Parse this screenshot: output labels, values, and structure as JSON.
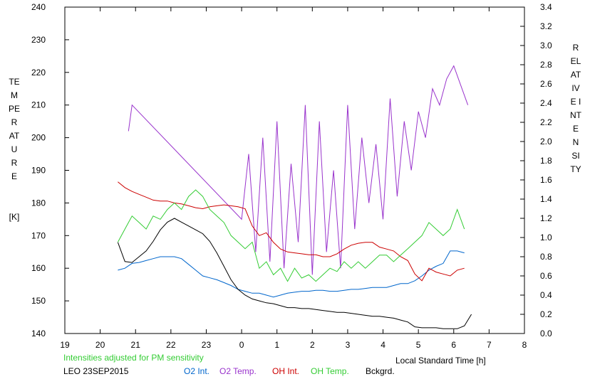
{
  "chart_data": {
    "type": "line",
    "title": "",
    "xlabel": "Local Standard Time [h]",
    "ylabel_left": "TEMPERATURE",
    "ylabel_left_unit": "[K]",
    "ylabel_right": "RELATIVE INTENSITY",
    "xlim": [
      19,
      32
    ],
    "ylim_left": [
      140,
      240
    ],
    "ylim_right": [
      0.0,
      3.4
    ],
    "x_ticks": [
      19,
      20,
      21,
      22,
      23,
      24,
      25,
      26,
      27,
      28,
      29,
      30,
      31,
      32
    ],
    "x_tick_labels": [
      "19",
      "20",
      "21",
      "22",
      "23",
      "0",
      "1",
      "2",
      "3",
      "4",
      "5",
      "6",
      "7",
      "8"
    ],
    "y_left_ticks": [
      140,
      150,
      160,
      170,
      180,
      190,
      200,
      210,
      220,
      230,
      240
    ],
    "y_right_ticks": [
      "0.0",
      "0.2",
      "0.4",
      "0.6",
      "0.8",
      "1.0",
      "1.2",
      "1.4",
      "1.6",
      "1.8",
      "2.0",
      "2.2",
      "2.4",
      "2.6",
      "2.8",
      "3.0",
      "3.2",
      "3.4"
    ],
    "grid": false,
    "note": "Intensities adjusted for PM sensitivity",
    "station_label": "LEO 23SEP2015",
    "legend_placement": "bottom",
    "series": [
      {
        "name": "O2 Int.",
        "color": "#0066cc",
        "axis": "right",
        "x": [
          20.5,
          20.7,
          20.9,
          21.1,
          21.3,
          21.5,
          21.7,
          21.9,
          22.1,
          22.3,
          22.5,
          22.7,
          22.9,
          23.1,
          23.3,
          23.5,
          23.7,
          23.9,
          24.1,
          24.3,
          24.5,
          24.7,
          24.9,
          25.1,
          25.3,
          25.5,
          25.7,
          25.9,
          26.1,
          26.3,
          26.5,
          26.7,
          26.9,
          27.1,
          27.3,
          27.5,
          27.7,
          27.9,
          28.1,
          28.3,
          28.5,
          28.7,
          28.9,
          29.1,
          29.3,
          29.5,
          29.7,
          29.9,
          30.1,
          30.3
        ],
        "values": [
          0.66,
          0.68,
          0.73,
          0.74,
          0.76,
          0.78,
          0.8,
          0.8,
          0.8,
          0.78,
          0.72,
          0.66,
          0.6,
          0.58,
          0.56,
          0.53,
          0.5,
          0.46,
          0.44,
          0.42,
          0.42,
          0.4,
          0.38,
          0.4,
          0.42,
          0.43,
          0.44,
          0.44,
          0.45,
          0.45,
          0.44,
          0.44,
          0.45,
          0.46,
          0.46,
          0.47,
          0.48,
          0.48,
          0.48,
          0.5,
          0.52,
          0.52,
          0.55,
          0.6,
          0.66,
          0.7,
          0.73,
          0.86,
          0.86,
          0.84
        ]
      },
      {
        "name": "O2 Temp.",
        "color": "#9933cc",
        "axis": "left",
        "x": [
          20.8,
          20.9,
          24.0,
          24.2,
          24.4,
          24.6,
          24.8,
          25.0,
          25.2,
          25.4,
          25.6,
          25.8,
          26.0,
          26.2,
          26.4,
          26.6,
          26.8,
          27.0,
          27.2,
          27.4,
          27.6,
          27.8,
          28.0,
          28.2,
          28.4,
          28.6,
          28.8,
          29.0,
          29.2,
          29.4,
          29.6,
          29.8,
          30.0,
          30.2,
          30.4
        ],
        "values": [
          202,
          210,
          175,
          195,
          165,
          200,
          162,
          205,
          160,
          192,
          168,
          210,
          158,
          205,
          165,
          190,
          160,
          210,
          172,
          200,
          180,
          198,
          175,
          212,
          182,
          205,
          190,
          208,
          200,
          215,
          210,
          218,
          222,
          216,
          210
        ]
      },
      {
        "name": "OH Int.",
        "color": "#cc0000",
        "axis": "right",
        "x": [
          20.5,
          20.7,
          20.9,
          21.1,
          21.3,
          21.5,
          21.7,
          21.9,
          22.1,
          22.3,
          22.5,
          22.7,
          22.9,
          23.1,
          23.3,
          23.5,
          23.7,
          23.9,
          24.1,
          24.3,
          24.5,
          24.7,
          24.9,
          25.1,
          25.3,
          25.5,
          25.7,
          25.9,
          26.1,
          26.3,
          26.5,
          26.7,
          26.9,
          27.1,
          27.3,
          27.5,
          27.7,
          27.9,
          28.1,
          28.3,
          28.5,
          28.7,
          28.9,
          29.1,
          29.3,
          29.5,
          29.7,
          29.9,
          30.1,
          30.3
        ],
        "values": [
          1.58,
          1.52,
          1.48,
          1.45,
          1.42,
          1.39,
          1.38,
          1.38,
          1.36,
          1.35,
          1.33,
          1.31,
          1.3,
          1.32,
          1.33,
          1.34,
          1.33,
          1.32,
          1.3,
          1.12,
          1.02,
          1.05,
          0.95,
          0.88,
          0.85,
          0.84,
          0.83,
          0.82,
          0.82,
          0.8,
          0.8,
          0.83,
          0.88,
          0.92,
          0.94,
          0.95,
          0.95,
          0.9,
          0.88,
          0.86,
          0.8,
          0.76,
          0.62,
          0.55,
          0.68,
          0.64,
          0.62,
          0.6,
          0.66,
          0.68
        ]
      },
      {
        "name": "OH Temp.",
        "color": "#33cc33",
        "axis": "left",
        "x": [
          20.5,
          20.7,
          20.9,
          21.1,
          21.3,
          21.5,
          21.7,
          21.9,
          22.1,
          22.3,
          22.5,
          22.7,
          22.9,
          23.1,
          23.3,
          23.5,
          23.7,
          23.9,
          24.1,
          24.3,
          24.5,
          24.7,
          24.9,
          25.1,
          25.3,
          25.5,
          25.7,
          25.9,
          26.1,
          26.3,
          26.5,
          26.7,
          26.9,
          27.1,
          27.3,
          27.5,
          27.7,
          27.9,
          28.1,
          28.3,
          28.5,
          28.7,
          28.9,
          29.1,
          29.3,
          29.5,
          29.7,
          29.9,
          30.1,
          30.3
        ],
        "values": [
          168,
          172,
          176,
          174,
          172,
          176,
          175,
          178,
          180,
          178,
          182,
          184,
          182,
          178,
          176,
          174,
          170,
          168,
          166,
          168,
          160,
          162,
          158,
          160,
          156,
          160,
          157,
          158,
          156,
          158,
          160,
          159,
          162,
          160,
          162,
          160,
          162,
          164,
          164,
          162,
          164,
          166,
          168,
          170,
          174,
          172,
          170,
          172,
          178,
          172
        ]
      },
      {
        "name": "Bckgrd.",
        "color": "#000000",
        "axis": "right",
        "x": [
          20.5,
          20.7,
          20.9,
          21.1,
          21.3,
          21.5,
          21.7,
          21.9,
          22.1,
          22.3,
          22.5,
          22.7,
          22.9,
          23.1,
          23.3,
          23.5,
          23.7,
          23.9,
          24.1,
          24.3,
          24.5,
          24.7,
          24.9,
          25.1,
          25.3,
          25.5,
          25.7,
          25.9,
          26.1,
          26.3,
          26.5,
          26.7,
          26.9,
          27.1,
          27.3,
          27.5,
          27.7,
          27.9,
          28.1,
          28.3,
          28.5,
          28.7,
          28.9,
          29.1,
          29.3,
          29.5,
          29.7,
          29.9,
          30.1,
          30.3,
          30.5
        ],
        "values": [
          0.95,
          0.75,
          0.74,
          0.8,
          0.86,
          0.96,
          1.08,
          1.16,
          1.2,
          1.16,
          1.12,
          1.08,
          1.04,
          0.96,
          0.84,
          0.7,
          0.56,
          0.46,
          0.4,
          0.36,
          0.34,
          0.32,
          0.31,
          0.29,
          0.27,
          0.27,
          0.26,
          0.26,
          0.25,
          0.24,
          0.23,
          0.22,
          0.22,
          0.21,
          0.2,
          0.19,
          0.18,
          0.18,
          0.17,
          0.16,
          0.14,
          0.12,
          0.07,
          0.06,
          0.06,
          0.06,
          0.05,
          0.05,
          0.05,
          0.08,
          0.2
        ]
      }
    ]
  }
}
